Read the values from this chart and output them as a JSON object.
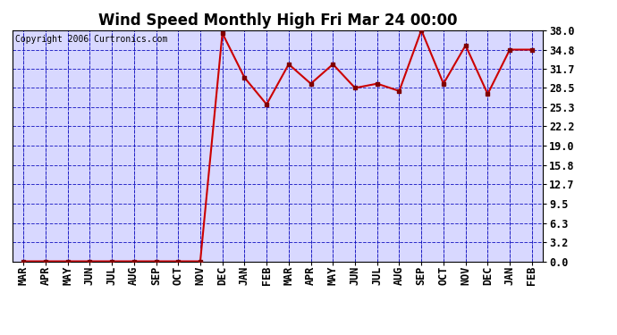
{
  "title": "Wind Speed Monthly High Fri Mar 24 00:00",
  "copyright": "Copyright 2006 Curtronics.com",
  "categories": [
    "MAR",
    "APR",
    "MAY",
    "JUN",
    "JUL",
    "AUG",
    "SEP",
    "OCT",
    "NOV",
    "DEC",
    "JAN",
    "FEB",
    "MAR",
    "APR",
    "MAY",
    "JUN",
    "JUL",
    "AUG",
    "SEP",
    "OCT",
    "NOV",
    "DEC",
    "JAN",
    "FEB"
  ],
  "values": [
    0.0,
    0.0,
    0.0,
    0.0,
    0.0,
    0.0,
    0.0,
    0.0,
    0.0,
    37.5,
    30.2,
    25.8,
    32.4,
    29.2,
    32.4,
    28.5,
    29.2,
    28.0,
    38.0,
    29.2,
    35.5,
    27.5,
    34.8,
    34.8
  ],
  "yticks": [
    0.0,
    3.2,
    6.3,
    9.5,
    12.7,
    15.8,
    19.0,
    22.2,
    25.3,
    28.5,
    31.7,
    34.8,
    38.0
  ],
  "ylim": [
    0.0,
    38.0
  ],
  "line_color": "#cc0000",
  "marker_color": "#800000",
  "bg_color": "#d8d8ff",
  "grid_color": "#0000bb",
  "title_fontsize": 12,
  "copyright_fontsize": 7,
  "tick_fontsize": 8.5
}
